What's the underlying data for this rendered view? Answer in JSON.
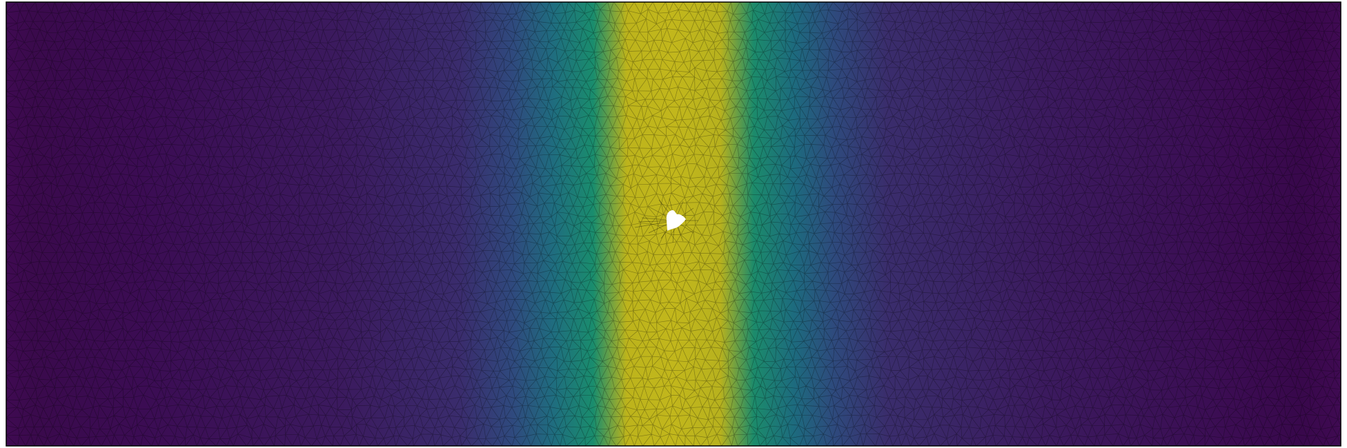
{
  "figure": {
    "kind": "finite-element mesh colored by scalar field",
    "colormap": "viridis",
    "colors": {
      "field_low": "#440154",
      "field_mid": "#21918c",
      "field_high": "#bdb41c",
      "mesh_edges": "#000000",
      "frame": "#000000",
      "hole_fill": "#ffffff"
    },
    "mesh": {
      "element_type": "triangle",
      "columns": 140,
      "rows": 46
    },
    "field": {
      "peak_location": "center",
      "profile": "gaussian band",
      "has_hole": true
    }
  }
}
